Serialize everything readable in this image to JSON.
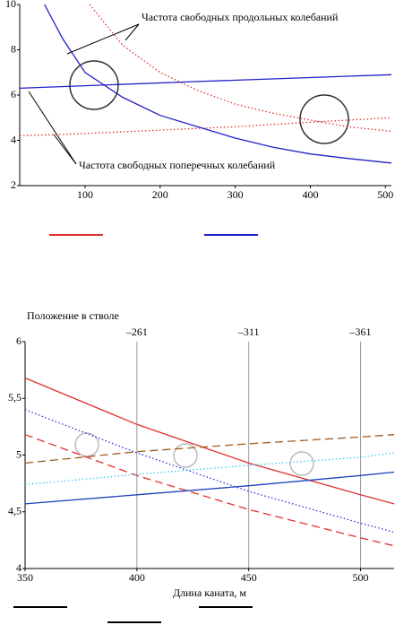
{
  "chart_data": [
    {
      "type": "line",
      "annotations": [
        "Частота свободных продольных колебаний",
        "Частота свободных поперечных колебаний"
      ],
      "xlim": [
        13,
        508
      ],
      "ylim": [
        2,
        10
      ],
      "xticks": [
        100,
        200,
        300,
        400,
        500
      ],
      "yticks": [
        2,
        4,
        6,
        8,
        10
      ],
      "series": [
        {
          "color": "#e03030",
          "style": "dotted",
          "x": [
            106,
            150,
            200,
            250,
            300,
            350,
            400,
            450,
            508
          ],
          "values": [
            10,
            8.2,
            7.0,
            6.2,
            5.6,
            5.2,
            4.9,
            4.6,
            4.4
          ]
        },
        {
          "color": "#e03030",
          "style": "dotted",
          "x": [
            13,
            100,
            200,
            300,
            400,
            508
          ],
          "values": [
            4.2,
            4.3,
            4.45,
            4.6,
            4.8,
            5.0
          ]
        },
        {
          "color": "#2020c8",
          "style": "solid",
          "x": [
            46,
            70,
            100,
            150,
            200,
            250,
            300,
            350,
            400,
            450,
            508
          ],
          "values": [
            10,
            8.5,
            7.0,
            5.9,
            5.1,
            4.6,
            4.1,
            3.7,
            3.4,
            3.2,
            3.0
          ]
        },
        {
          "color": "#2020c8",
          "style": "solid",
          "x": [
            13,
            250,
            508
          ],
          "values": [
            6.3,
            6.6,
            6.9
          ]
        }
      ]
    },
    {
      "type": "line",
      "title": "Положение в стволе",
      "x_label": "Длина каната, м",
      "xlim": [
        350,
        515
      ],
      "ylim": [
        4,
        6
      ],
      "xticks": [
        350,
        400,
        450,
        500
      ],
      "yticks": [
        4,
        {
          "value": 4.5,
          "label": "4,5"
        },
        5,
        {
          "value": 5.5,
          "label": "5,5"
        },
        6
      ],
      "markers": [
        {
          "x": 400,
          "label": "–261"
        },
        {
          "x": 450,
          "label": "–311"
        },
        {
          "x": 500,
          "label": "–361"
        }
      ],
      "series": [
        {
          "color": "#e03030",
          "style": "solid",
          "x": [
            350,
            400,
            450,
            500,
            515
          ],
          "values": [
            5.68,
            5.27,
            4.93,
            4.65,
            4.57
          ]
        },
        {
          "color": "#e03030",
          "style": "dashed",
          "x": [
            350,
            400,
            450,
            500,
            515
          ],
          "values": [
            5.18,
            4.82,
            4.52,
            4.27,
            4.2
          ]
        },
        {
          "color": "#3030d0",
          "style": "dotted",
          "x": [
            350,
            400,
            450,
            500,
            515
          ],
          "values": [
            5.4,
            5.02,
            4.68,
            4.4,
            4.32
          ]
        },
        {
          "color": "#a05a20",
          "style": "dashed",
          "x": [
            350,
            400,
            450,
            500,
            515
          ],
          "values": [
            4.93,
            5.03,
            5.1,
            5.16,
            5.18
          ]
        },
        {
          "color": "#40c8f0",
          "style": "dotted",
          "x": [
            350,
            400,
            450,
            500,
            515
          ],
          "values": [
            4.74,
            4.83,
            4.91,
            4.98,
            5.02
          ]
        },
        {
          "color": "#2040c0",
          "style": "solid",
          "x": [
            350,
            400,
            450,
            500,
            515
          ],
          "values": [
            4.57,
            4.65,
            4.73,
            4.82,
            4.85
          ]
        }
      ]
    }
  ]
}
